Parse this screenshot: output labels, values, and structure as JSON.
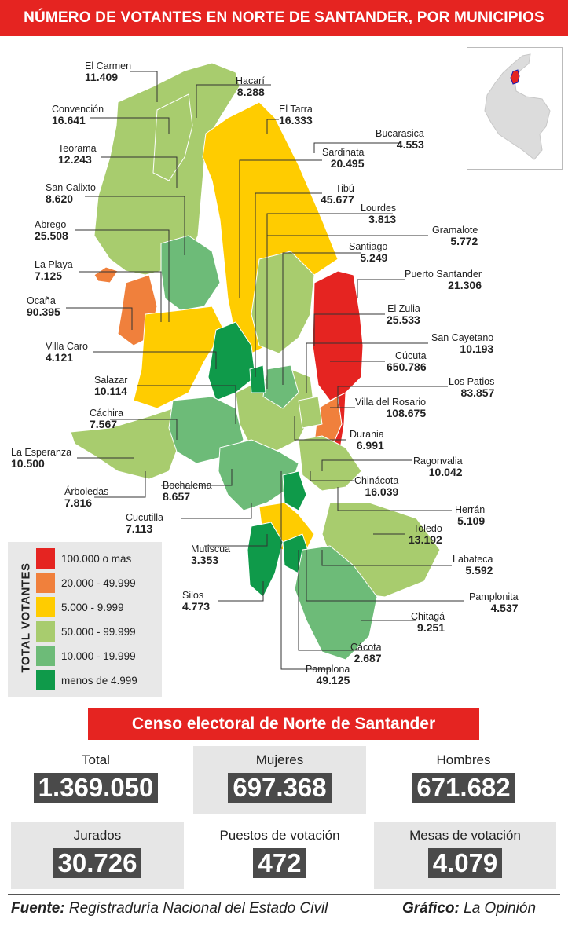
{
  "title": "NÚMERO DE VOTANTES EN NORTE DE SANTANDER, POR MUNICIPIOS",
  "colors": {
    "red": "#e52421",
    "orange": "#f0803c",
    "yellow": "#ffcc00",
    "lightgreen": "#a8cc6e",
    "midgreen": "#6dbb78",
    "darkgreen": "#0f9a4a"
  },
  "municipalities": [
    {
      "name": "El Carmen",
      "value": "11.409"
    },
    {
      "name": "Hacarí",
      "value": "8.288"
    },
    {
      "name": "Convención",
      "value": "16.641"
    },
    {
      "name": "El Tarra",
      "value": "16.333"
    },
    {
      "name": "Bucarasica",
      "value": "4.553"
    },
    {
      "name": "Teorama",
      "value": "12.243"
    },
    {
      "name": "Sardinata",
      "value": "20.495"
    },
    {
      "name": "San Calixto",
      "value": "8.620"
    },
    {
      "name": "Tibú",
      "value": "45.677"
    },
    {
      "name": "Lourdes",
      "value": "3.813"
    },
    {
      "name": "Abrego",
      "value": "25.508"
    },
    {
      "name": "Gramalote",
      "value": "5.772"
    },
    {
      "name": "Santiago",
      "value": "5.249"
    },
    {
      "name": "La Playa",
      "value": "7.125"
    },
    {
      "name": "Puerto Santander",
      "value": "21.306"
    },
    {
      "name": "Ocaña",
      "value": "90.395"
    },
    {
      "name": "El Zulia",
      "value": "25.533"
    },
    {
      "name": "San Cayetano",
      "value": "10.193"
    },
    {
      "name": "Villa Caro",
      "value": "4.121"
    },
    {
      "name": "Cúcuta",
      "value": "650.786"
    },
    {
      "name": "Los Patios",
      "value": "83.857"
    },
    {
      "name": "Salazar",
      "value": "10.114"
    },
    {
      "name": "Villa del Rosario",
      "value": "108.675"
    },
    {
      "name": "Cáchira",
      "value": "7.567"
    },
    {
      "name": "Durania",
      "value": "6.991"
    },
    {
      "name": "Ragonvalia",
      "value": "10.042"
    },
    {
      "name": "La Esperanza",
      "value": "10.500"
    },
    {
      "name": "Chinácota",
      "value": "16.039"
    },
    {
      "name": "Bochalema",
      "value": "8.657"
    },
    {
      "name": "Árboledas",
      "value": "7.816"
    },
    {
      "name": "Herrán",
      "value": "5.109"
    },
    {
      "name": "Cucutilla",
      "value": "7.113"
    },
    {
      "name": "Toledo",
      "value": "13.192"
    },
    {
      "name": "Mutiscua",
      "value": "3.353"
    },
    {
      "name": "Labateca",
      "value": "5.592"
    },
    {
      "name": "Pamplonita",
      "value": "4.537"
    },
    {
      "name": "Silos",
      "value": "4.773"
    },
    {
      "name": "Chitagá",
      "value": "9.251"
    },
    {
      "name": "Cácota",
      "value": "2.687"
    },
    {
      "name": "Pamplona",
      "value": "49.125"
    }
  ],
  "legend": {
    "title": "TOTAL VOTANTES",
    "items": [
      {
        "label": "100.000 o más",
        "color": "#e52421"
      },
      {
        "label": "20.000 - 49.999",
        "color": "#f0803c"
      },
      {
        "label": "5.000 - 9.999",
        "color": "#ffcc00"
      },
      {
        "label": "50.000 - 99.999",
        "color": "#a8cc6e"
      },
      {
        "label": "10.000 - 19.999",
        "color": "#6dbb78"
      },
      {
        "label": "menos de  4.999",
        "color": "#0f9a4a"
      }
    ]
  },
  "census": {
    "heading": "Censo electoral de Norte de Santander",
    "stats": [
      {
        "label": "Total",
        "value": "1.369.050"
      },
      {
        "label": "Mujeres",
        "value": "697.368"
      },
      {
        "label": "Hombres",
        "value": "671.682"
      },
      {
        "label": "Jurados",
        "value": "30.726"
      },
      {
        "label": "Puestos de votación",
        "value": "472"
      },
      {
        "label": "Mesas de votación",
        "value": "4.079"
      }
    ]
  },
  "footer": {
    "source_label": "Fuente:",
    "source_text": "Registraduría Nacional del Estado Civil",
    "graphic_label": "Gráfico:",
    "graphic_text": "La Opinión"
  }
}
